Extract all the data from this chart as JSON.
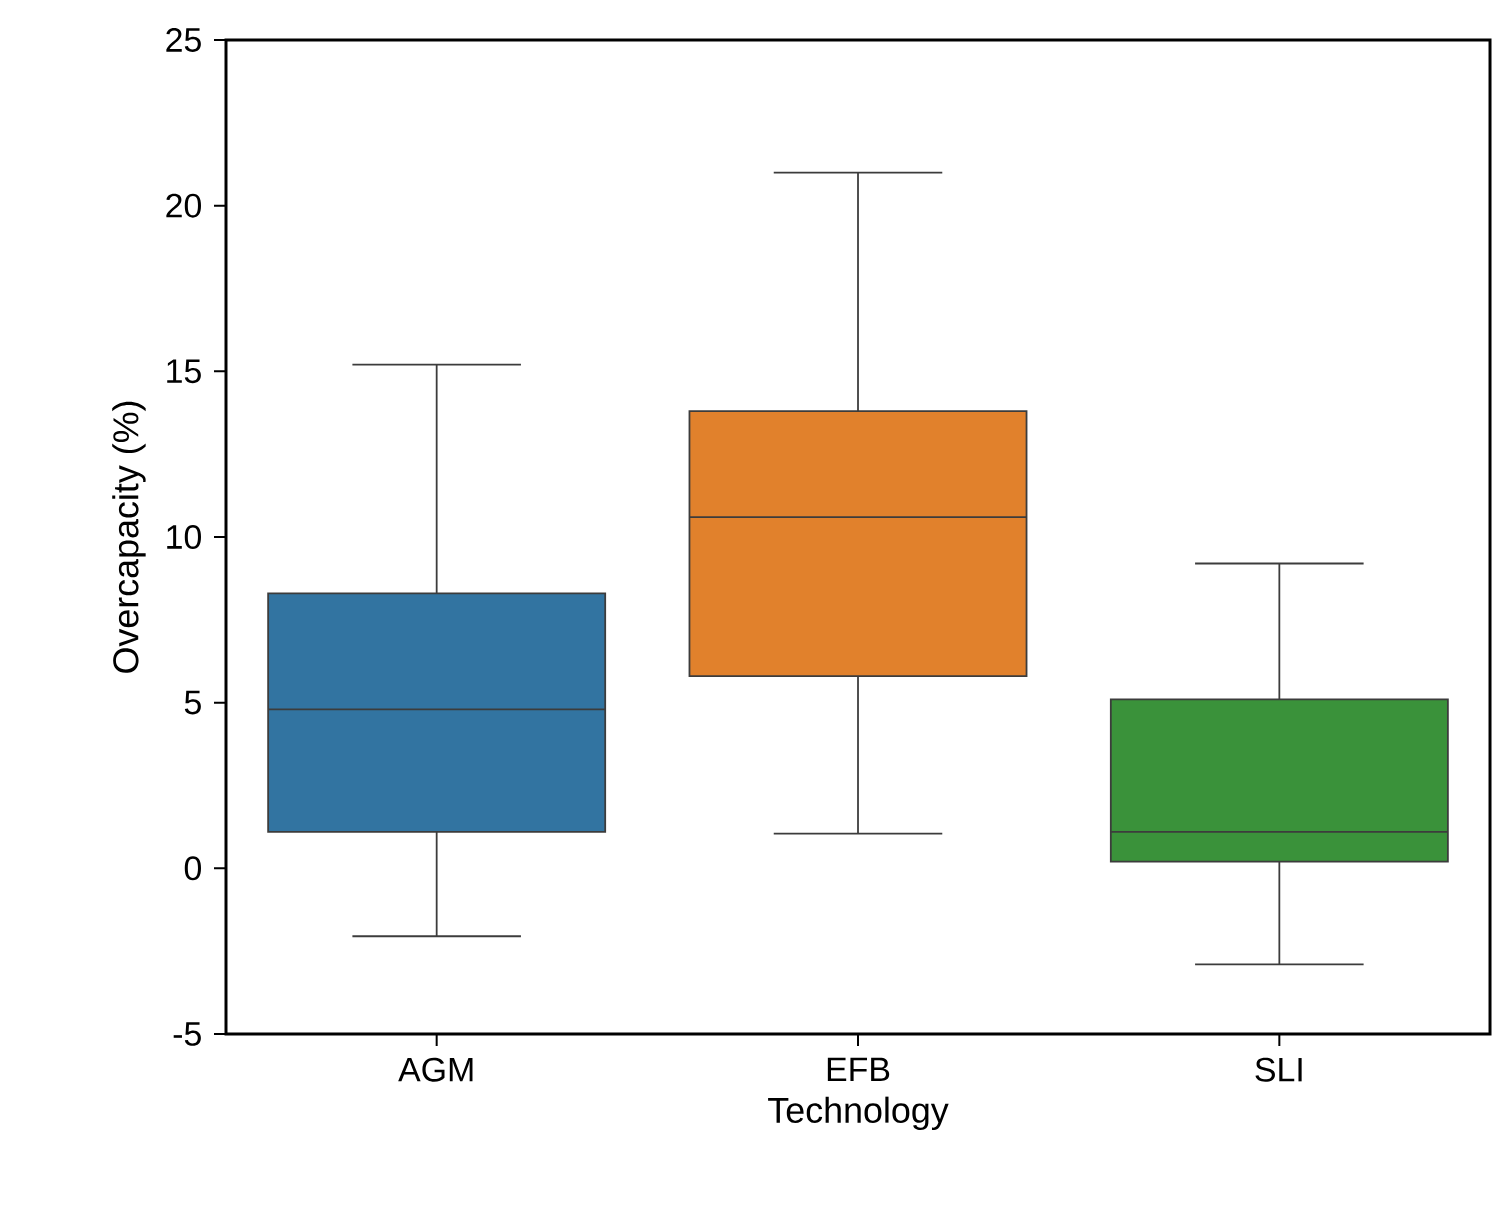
{
  "chart_data": {
    "type": "box",
    "xlabel": "Technology",
    "ylabel": "Overcapacity (%)",
    "categories": [
      "AGM",
      "EFB",
      "SLI"
    ],
    "boxes": [
      {
        "low": -2.05,
        "q1": 1.1,
        "median": 4.8,
        "q3": 8.3,
        "high": 15.2
      },
      {
        "low": 1.05,
        "q1": 5.8,
        "median": 10.6,
        "q3": 13.8,
        "high": 21.0
      },
      {
        "low": -2.9,
        "q1": 0.2,
        "median": 1.1,
        "q3": 5.1,
        "high": 9.2
      }
    ],
    "colors": [
      "#3274a1",
      "#e1812c",
      "#3a923a"
    ],
    "ylim": [
      -5,
      25
    ],
    "yticks": [
      -5,
      0,
      5,
      10,
      15,
      20,
      25
    ]
  }
}
